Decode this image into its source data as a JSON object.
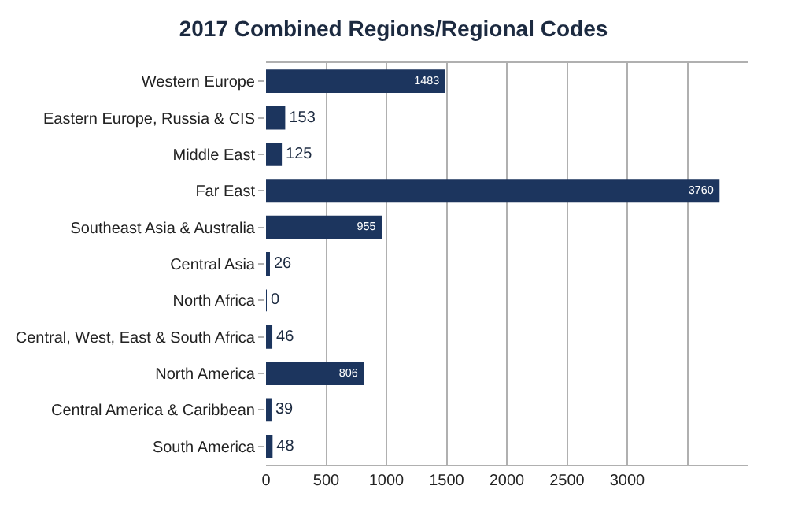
{
  "chart_data": {
    "type": "bar",
    "orientation": "horizontal",
    "title": "2017 Combined Regions/Regional Codes",
    "categories": [
      "Western Europe",
      "Eastern Europe, Russia & CIS",
      "Middle East",
      "Far East",
      "Southeast Asia & Australia",
      "Central Asia",
      "North Africa",
      "Central, West, East & South Africa",
      "North America",
      "Central America & Caribbean",
      "South America"
    ],
    "values": [
      1483,
      153,
      125,
      3760,
      955,
      26,
      0,
      46,
      806,
      39,
      48
    ],
    "color": "#1c355e",
    "data_labels": true,
    "grid": "x",
    "legend": false,
    "xlim": [
      0,
      4000
    ],
    "xticks": [
      0,
      500,
      1000,
      1500,
      2000,
      2500,
      3000,
      {
        "value": 3500,
        "label": null
      }
    ]
  }
}
